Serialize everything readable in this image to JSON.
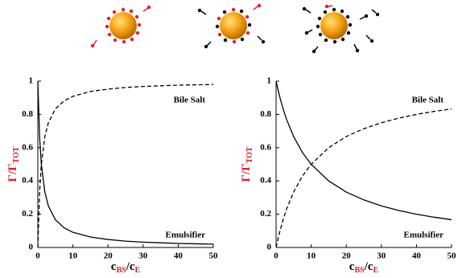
{
  "chart_data": [
    {
      "type": "line",
      "x": [
        0,
        0.5,
        1,
        2,
        3,
        5,
        7.5,
        10,
        15,
        20,
        25,
        30,
        35,
        40,
        45,
        50
      ],
      "series": [
        {
          "name": "Bile Salt",
          "color": "#000000",
          "dash": "dashed",
          "values": [
            0,
            0.333,
            0.5,
            0.667,
            0.75,
            0.833,
            0.882,
            0.909,
            0.938,
            0.952,
            0.962,
            0.968,
            0.972,
            0.976,
            0.978,
            0.98
          ]
        },
        {
          "name": "Emulsifier",
          "color": "#000000",
          "dash": "solid",
          "values": [
            1,
            0.667,
            0.5,
            0.333,
            0.25,
            0.167,
            0.118,
            0.091,
            0.063,
            0.048,
            0.038,
            0.032,
            0.028,
            0.024,
            0.022,
            0.02
          ]
        }
      ],
      "xlim": [
        0,
        50
      ],
      "ylim": [
        0,
        1
      ],
      "xticks": [
        0,
        10,
        20,
        30,
        40,
        50
      ],
      "yticks": [
        0,
        0.2,
        0.4,
        0.6,
        0.8,
        1
      ],
      "xlabel": {
        "c1": "c",
        "sub1": "BS",
        "c2": "/c",
        "sub2": "E"
      },
      "ylabel": {
        "main": "Γ/Γ",
        "sub": "TOT"
      }
    },
    {
      "type": "line",
      "x": [
        0,
        0.5,
        1,
        2,
        3,
        5,
        7.5,
        10,
        15,
        20,
        25,
        30,
        35,
        40,
        45,
        50
      ],
      "series": [
        {
          "name": "Bile Salt",
          "color": "#000000",
          "dash": "dashed",
          "values": [
            0,
            0.048,
            0.091,
            0.167,
            0.231,
            0.333,
            0.429,
            0.5,
            0.6,
            0.667,
            0.714,
            0.75,
            0.778,
            0.8,
            0.818,
            0.833
          ]
        },
        {
          "name": "Emulsifier",
          "color": "#000000",
          "dash": "solid",
          "values": [
            1,
            0.952,
            0.909,
            0.833,
            0.769,
            0.667,
            0.571,
            0.5,
            0.4,
            0.333,
            0.286,
            0.25,
            0.222,
            0.2,
            0.182,
            0.167
          ]
        }
      ],
      "xlim": [
        0,
        50
      ],
      "ylim": [
        0,
        1
      ],
      "xticks": [
        0,
        10,
        20,
        30,
        40,
        50
      ],
      "yticks": [
        0,
        0.2,
        0.4,
        0.6,
        0.8,
        1
      ],
      "xlabel": {
        "c1": "c",
        "sub1": "BS",
        "c2": "/c",
        "sub2": "E"
      },
      "ylabel": {
        "main": "Γ/Γ",
        "sub": "TOT"
      }
    }
  ]
}
